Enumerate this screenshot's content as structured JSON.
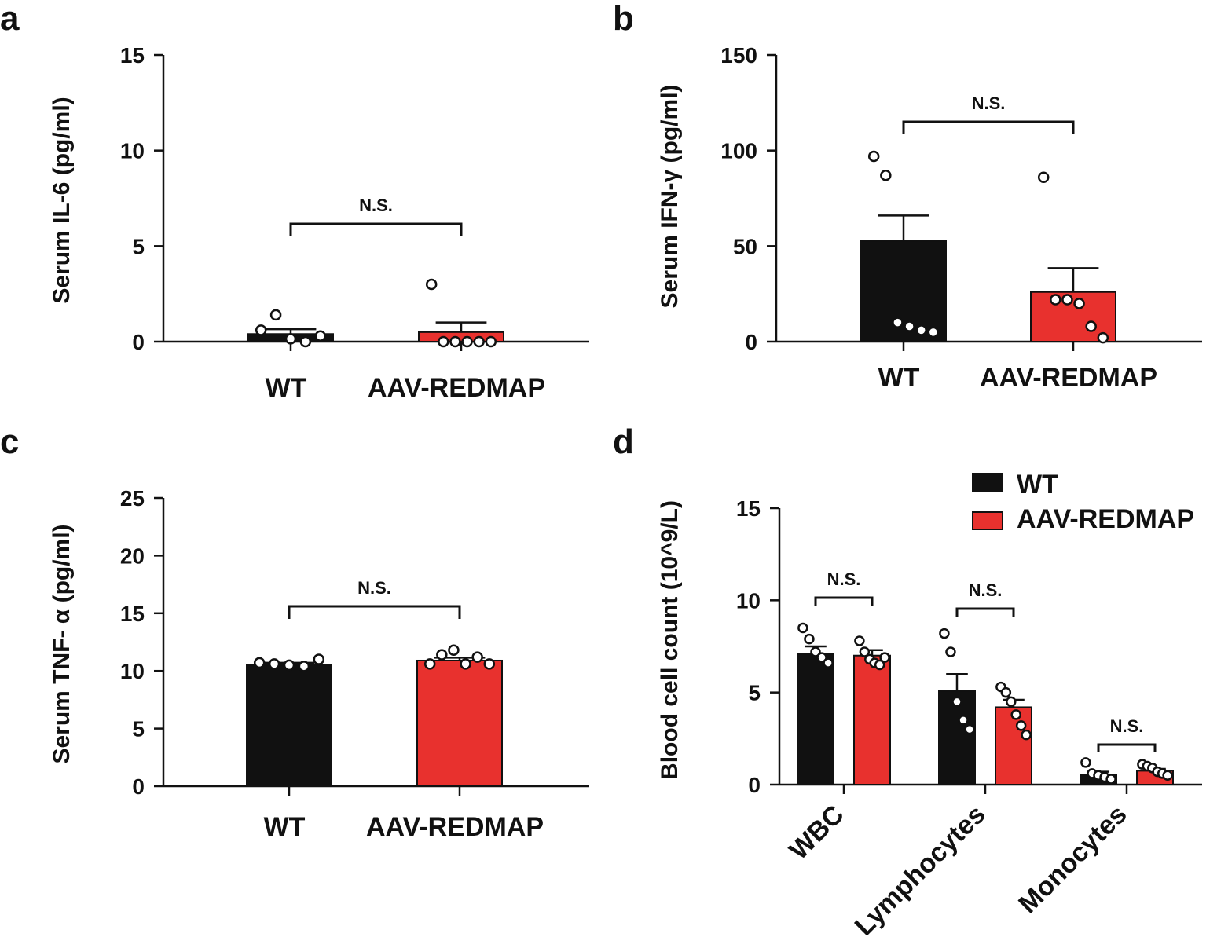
{
  "colors": {
    "WT": "#111111",
    "AAV-REDMAP": "#e8312e"
  },
  "chart_data": [
    {
      "panel": "a",
      "type": "bar",
      "ylabel": "Serum IL-6 (pg/ml)",
      "categories": [
        "WT",
        "AAV-REDMAP"
      ],
      "values": [
        0.4,
        0.5
      ],
      "errors": [
        0.25,
        0.5
      ],
      "points": [
        [
          0.6,
          1.4,
          0.15,
          0,
          0.3
        ],
        [
          3.0,
          0,
          0,
          0,
          0,
          0
        ]
      ],
      "ylim": [
        0,
        15
      ],
      "yticks": [
        0,
        5,
        10,
        15
      ],
      "significance": [
        {
          "from": "WT",
          "to": "AAV-REDMAP",
          "label": "N.S."
        }
      ]
    },
    {
      "panel": "b",
      "type": "bar",
      "ylabel": "Serum IFN-γ  (pg/ml)",
      "categories": [
        "WT",
        "AAV-REDMAP"
      ],
      "values": [
        53,
        26
      ],
      "errors": [
        13,
        12.5
      ],
      "points": [
        [
          97,
          87,
          10,
          8,
          6,
          5
        ],
        [
          86,
          22,
          22,
          20,
          8,
          2
        ]
      ],
      "ylim": [
        0,
        150
      ],
      "yticks": [
        0,
        50,
        100,
        150
      ],
      "significance": [
        {
          "from": "WT",
          "to": "AAV-REDMAP",
          "label": "N.S."
        }
      ]
    },
    {
      "panel": "c",
      "type": "bar",
      "ylabel": "Serum TNF- α  (pg/ml)",
      "categories": [
        "WT",
        "AAV-REDMAP"
      ],
      "values": [
        10.5,
        10.9
      ],
      "errors": [
        0.2,
        0.25
      ],
      "points": [
        [
          10.7,
          10.6,
          10.5,
          10.4,
          11.0
        ],
        [
          10.6,
          11.4,
          11.8,
          10.6,
          11.2,
          10.6
        ]
      ],
      "ylim": [
        0,
        25
      ],
      "yticks": [
        0,
        5,
        10,
        15,
        20,
        25
      ],
      "significance": [
        {
          "from": "WT",
          "to": "AAV-REDMAP",
          "label": "N.S."
        }
      ]
    },
    {
      "panel": "d",
      "type": "bar",
      "ylabel": "Blood cell count (10^9/L)",
      "categories": [
        "WBC",
        "Lymphocytes",
        "Monocytes"
      ],
      "series": [
        {
          "name": "WT",
          "values": [
            7.1,
            5.1,
            0.55
          ],
          "errors": [
            0.4,
            0.9,
            0.15
          ],
          "points": [
            [
              8.5,
              7.9,
              7.2,
              6.9,
              6.6
            ],
            [
              8.2,
              7.2,
              4.5,
              3.5,
              3.0
            ],
            [
              1.2,
              0.6,
              0.5,
              0.4,
              0.3
            ]
          ]
        },
        {
          "name": "AAV-REDMAP",
          "values": [
            7.0,
            4.2,
            0.75
          ],
          "errors": [
            0.3,
            0.4,
            0.1
          ],
          "points": [
            [
              7.8,
              7.2,
              6.8,
              6.6,
              6.5,
              6.9
            ],
            [
              5.3,
              5.0,
              4.5,
              3.8,
              3.2,
              2.7
            ],
            [
              1.1,
              1.0,
              0.9,
              0.7,
              0.6,
              0.5
            ]
          ]
        }
      ],
      "ylim": [
        0,
        15
      ],
      "yticks": [
        0,
        5,
        10,
        15
      ],
      "legend": "top-right",
      "significance": [
        {
          "category": "WBC",
          "label": "N.S."
        },
        {
          "category": "Lymphocytes",
          "label": "N.S."
        },
        {
          "category": "Monocytes",
          "label": "N.S."
        }
      ]
    }
  ]
}
